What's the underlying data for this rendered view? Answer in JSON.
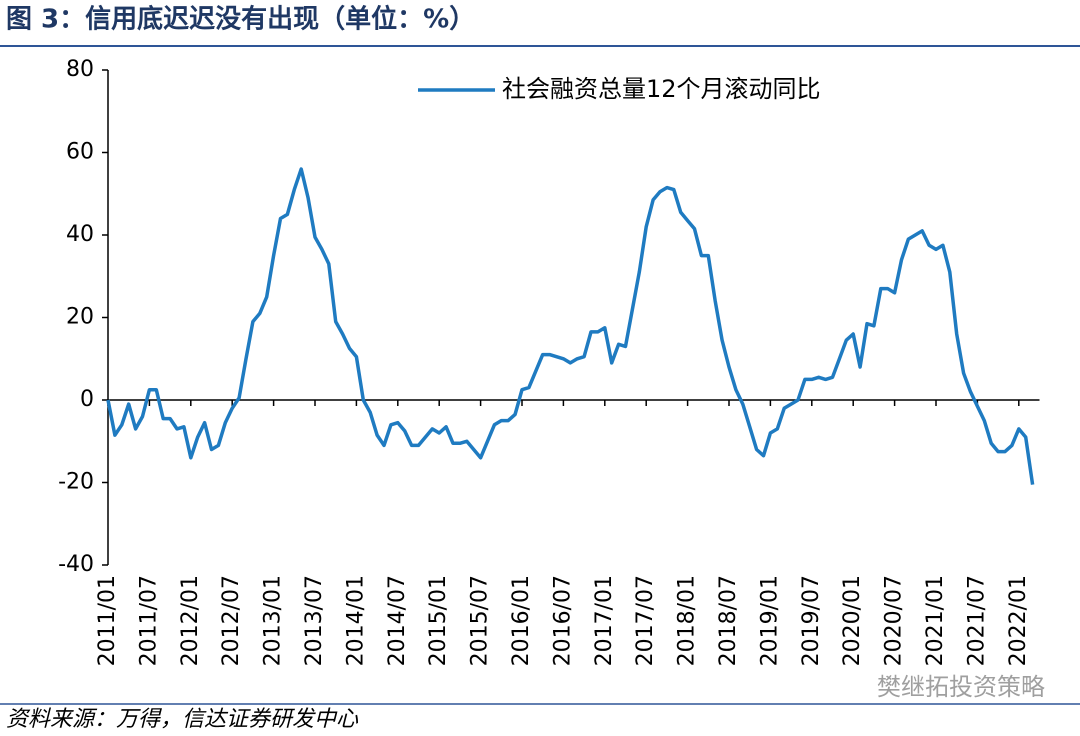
{
  "chart_data": {
    "type": "line",
    "title": "图 3：信用底迟迟没有出现（单位：%）",
    "source": "资料来源：万得，信达证券研发中心",
    "watermark": "樊继拓投资策略",
    "categories": [
      "2011/01",
      null,
      null,
      null,
      null,
      null,
      "2011/07",
      null,
      null,
      null,
      null,
      null,
      "2012/01",
      null,
      null,
      null,
      null,
      null,
      "2012/07",
      null,
      null,
      null,
      null,
      null,
      "2013/01",
      null,
      null,
      null,
      null,
      null,
      "2013/07",
      null,
      null,
      null,
      null,
      null,
      "2014/01",
      null,
      null,
      null,
      null,
      null,
      "2014/07",
      null,
      null,
      null,
      null,
      null,
      "2015/01",
      null,
      null,
      null,
      null,
      null,
      "2015/07",
      null,
      null,
      null,
      null,
      null,
      "2016/01",
      null,
      null,
      null,
      null,
      null,
      "2016/07",
      null,
      null,
      null,
      null,
      null,
      "2017/01",
      null,
      null,
      null,
      null,
      null,
      "2017/07",
      null,
      null,
      null,
      null,
      null,
      "2018/01",
      null,
      null,
      null,
      null,
      null,
      "2018/07",
      null,
      null,
      null,
      null,
      null,
      "2019/01",
      null,
      null,
      null,
      null,
      null,
      "2019/07",
      null,
      null,
      null,
      null,
      null,
      "2020/01",
      null,
      null,
      null,
      null,
      null,
      "2020/07",
      null,
      null,
      null,
      null,
      null,
      "2021/01",
      null,
      null,
      null,
      null,
      null,
      "2021/07",
      null,
      null,
      null,
      null,
      null,
      "2022/01",
      null,
      null
    ],
    "series": [
      {
        "name": "社会融资总量12个月滚动同比",
        "color": "#1f7bc1",
        "values": [
          0,
          -8.5,
          -6,
          -1,
          -7,
          -4,
          2.5,
          2.5,
          -4.5,
          -4.5,
          -7,
          -6.5,
          -14,
          -9,
          -5.5,
          -12,
          -11,
          -5.5,
          -2,
          0.5,
          10,
          19,
          21,
          25,
          35,
          44,
          45,
          51,
          56,
          49,
          39.5,
          36.5,
          33,
          19,
          16,
          12.5,
          10.5,
          0,
          -3,
          -8.5,
          -11,
          -6,
          -5.5,
          -7.5,
          -11,
          -11,
          -9,
          -7,
          -8,
          -6.5,
          -10.5,
          -10.5,
          -10,
          -12,
          -14,
          -10,
          -6,
          -5,
          -5,
          -3.5,
          2.5,
          3,
          7,
          11,
          11,
          10.5,
          10,
          9,
          10,
          10.5,
          16.5,
          16.5,
          17.5,
          9,
          13.5,
          13,
          22,
          31,
          42,
          48.5,
          50.5,
          51.5,
          51,
          45.5,
          43.5,
          41.5,
          35,
          35,
          24,
          14.5,
          8,
          2.5,
          -1,
          -6.5,
          -12,
          -13.5,
          -8,
          -7,
          -2,
          -1,
          0,
          5,
          5,
          5.5,
          5,
          5.5,
          10,
          14.5,
          16,
          8,
          18.5,
          18,
          27,
          27,
          26,
          34,
          39,
          40,
          41,
          37.5,
          36.5,
          37.5,
          31,
          16,
          6.5,
          2,
          -1.5,
          -5,
          -10.5,
          -12.5,
          -12.5,
          -11,
          -7,
          -9,
          -20.5
        ]
      }
    ],
    "ylim": [
      -40,
      80
    ],
    "yticks": [
      -40,
      -20,
      0,
      20,
      40,
      60,
      80
    ],
    "legend": "top-right",
    "grid": false
  }
}
